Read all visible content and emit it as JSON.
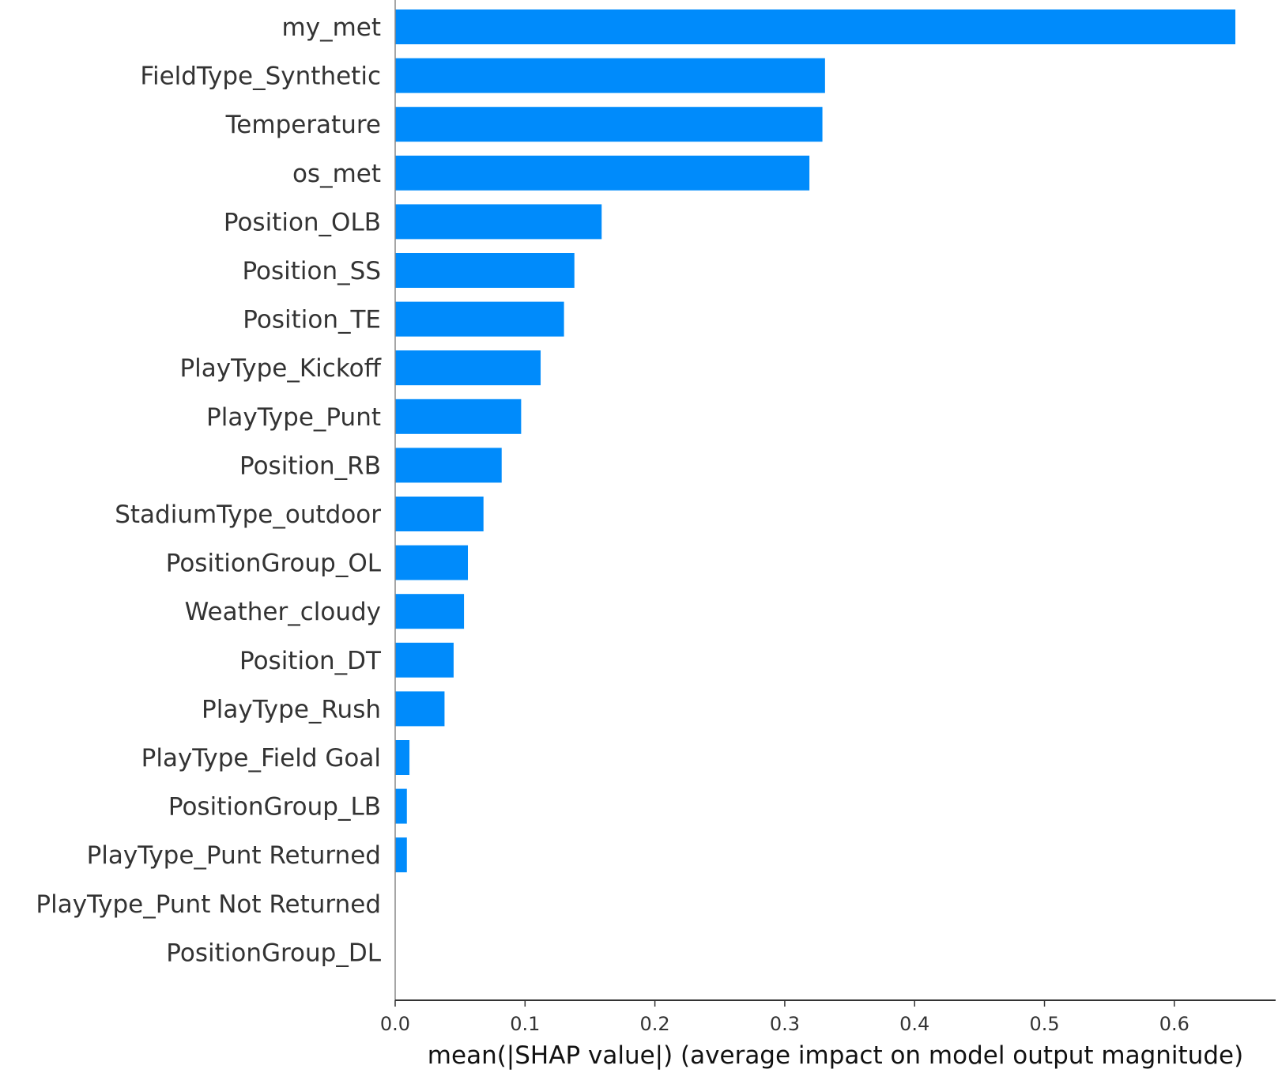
{
  "chart_data": {
    "type": "bar",
    "orientation": "horizontal",
    "categories": [
      "my_met",
      "FieldType_Synthetic",
      "Temperature",
      "os_met",
      "Position_OLB",
      "Position_SS",
      "Position_TE",
      "PlayType_Kickoff",
      "PlayType_Punt",
      "Position_RB",
      "StadiumType_outdoor",
      "PositionGroup_OL",
      "Weather_cloudy",
      "Position_DT",
      "PlayType_Rush",
      "PlayType_Field Goal",
      "PositionGroup_LB",
      "PlayType_Punt Returned",
      "PlayType_Punt Not Returned",
      "PositionGroup_DL"
    ],
    "values": [
      0.647,
      0.331,
      0.329,
      0.319,
      0.159,
      0.138,
      0.13,
      0.112,
      0.097,
      0.082,
      0.068,
      0.056,
      0.053,
      0.045,
      0.038,
      0.011,
      0.009,
      0.009,
      0.0,
      0.0
    ],
    "xlabel": "mean(|SHAP value|) (average impact on model output magnitude)",
    "ylabel": "",
    "xlim": [
      0,
      0.678
    ],
    "xticks": [
      0.0,
      0.1,
      0.2,
      0.3,
      0.4,
      0.5,
      0.6
    ],
    "xtick_labels": [
      "0.0",
      "0.1",
      "0.2",
      "0.3",
      "0.4",
      "0.5",
      "0.6"
    ],
    "grid": false,
    "bar_color": "#008bfb",
    "axis_color": "#333333"
  }
}
